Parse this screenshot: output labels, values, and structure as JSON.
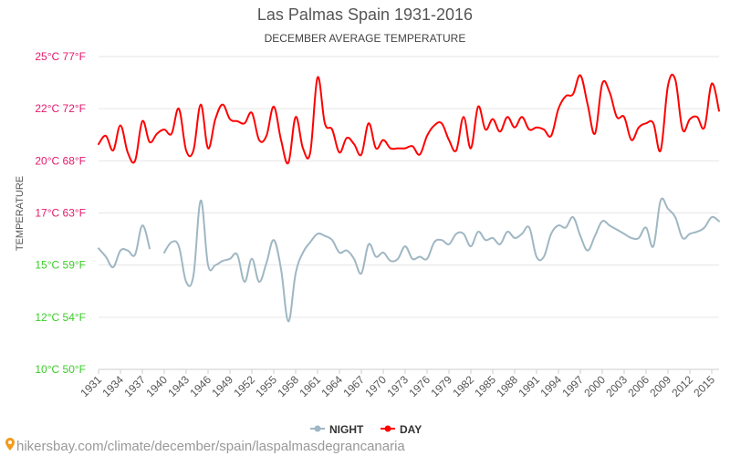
{
  "colors": {
    "night": "#9fb7c3",
    "day": "#ff0000",
    "y_label": "#e5196b",
    "y_label_cold": "#3bcc28",
    "grid": "#e6e6e6",
    "text": "#555555"
  },
  "source_text": "hikersbay.com/climate/december/spain/laspalmasdegrancanaria",
  "chart_data": {
    "type": "line",
    "title": "Las Palmas Spain 1931-2016",
    "subtitle": "DECEMBER AVERAGE TEMPERATURE",
    "ylabel": "TEMPERATURE",
    "xlabel": "",
    "ylim": [
      10,
      25
    ],
    "y_ticks": [
      {
        "value": 10,
        "label": "10°C 50°F",
        "cold": true
      },
      {
        "value": 12.5,
        "label": "12°C 54°F",
        "cold": true
      },
      {
        "value": 15,
        "label": "15°C 59°F",
        "cold": true
      },
      {
        "value": 17.5,
        "label": "17°C 63°F",
        "cold": false
      },
      {
        "value": 20,
        "label": "20°C 68°F",
        "cold": false
      },
      {
        "value": 22.5,
        "label": "22°C 72°F",
        "cold": false
      },
      {
        "value": 25,
        "label": "25°C 77°F",
        "cold": false
      }
    ],
    "x_range": [
      1931,
      2016
    ],
    "x_tick_labels": [
      "1931",
      "1934",
      "1937",
      "1940",
      "1943",
      "1946",
      "1949",
      "1952",
      "1955",
      "1958",
      "1961",
      "1964",
      "1967",
      "1970",
      "1973",
      "1976",
      "1979",
      "1982",
      "1985",
      "1988",
      "1991",
      "1994",
      "1997",
      "2000",
      "2003",
      "2006",
      "2009",
      "2012",
      "2015"
    ],
    "legend": {
      "position": "bottom-center",
      "night_label": "NIGHT",
      "day_label": "DAY"
    },
    "grid": true,
    "series": [
      {
        "name": "DAY",
        "key": "day",
        "x": [
          1931,
          1932,
          1933,
          1934,
          1935,
          1936,
          1937,
          1938,
          1939,
          1940,
          1941,
          1942,
          1943,
          1944,
          1945,
          1946,
          1947,
          1948,
          1949,
          1950,
          1951,
          1952,
          1953,
          1954,
          1955,
          1956,
          1957,
          1958,
          1959,
          1960,
          1961,
          1962,
          1963,
          1964,
          1965,
          1966,
          1967,
          1968,
          1969,
          1970,
          1971,
          1972,
          1973,
          1974,
          1975,
          1976,
          1977,
          1978,
          1979,
          1980,
          1981,
          1982,
          1983,
          1984,
          1985,
          1986,
          1987,
          1988,
          1989,
          1990,
          1991,
          1992,
          1993,
          1994,
          1995,
          1996,
          1997,
          1998,
          1999,
          2000,
          2001,
          2002,
          2003,
          2004,
          2005,
          2006,
          2007,
          2008,
          2009,
          2010,
          2011,
          2012,
          2013,
          2014,
          2015,
          2016
        ],
        "values": [
          20.8,
          21.2,
          20.5,
          21.7,
          20.4,
          20.0,
          21.9,
          20.9,
          21.3,
          21.5,
          21.3,
          22.5,
          20.5,
          20.5,
          22.7,
          20.6,
          22.0,
          22.7,
          22.0,
          21.9,
          21.8,
          22.3,
          21.0,
          21.2,
          22.6,
          21.0,
          19.9,
          22.1,
          20.6,
          20.4,
          24.0,
          21.8,
          21.5,
          20.4,
          21.1,
          20.8,
          20.3,
          21.8,
          20.6,
          21.0,
          20.6,
          20.6,
          20.6,
          20.7,
          20.3,
          21.2,
          21.7,
          21.8,
          21.0,
          20.5,
          22.1,
          20.6,
          22.6,
          21.5,
          22.0,
          21.4,
          22.1,
          21.6,
          22.1,
          21.5,
          21.6,
          21.5,
          21.2,
          22.5,
          23.1,
          23.2,
          24.1,
          22.7,
          21.3,
          23.7,
          23.3,
          22.1,
          22.1,
          21.0,
          21.6,
          21.8,
          21.8,
          20.5,
          23.6,
          23.9,
          21.5,
          22.0,
          22.1,
          21.6,
          23.7,
          22.4
        ]
      },
      {
        "name": "NIGHT",
        "key": "night",
        "x": [
          1931,
          1932,
          1933,
          1934,
          1935,
          1936,
          1937,
          1938,
          null,
          1940,
          1941,
          1942,
          1943,
          1944,
          1945,
          1946,
          1947,
          1948,
          1949,
          1950,
          1951,
          1952,
          1953,
          1954,
          1955,
          1956,
          1957,
          1958,
          1959,
          1960,
          1961,
          1962,
          1963,
          1964,
          1965,
          1966,
          1967,
          1968,
          1969,
          1970,
          1971,
          1972,
          1973,
          1974,
          1975,
          1976,
          1977,
          1978,
          1979,
          1980,
          1981,
          1982,
          1983,
          1984,
          1985,
          1986,
          1987,
          1988,
          1989,
          1990,
          1991,
          1992,
          1993,
          1994,
          1995,
          1996,
          1997,
          1998,
          1999,
          2000,
          2001,
          2002,
          2003,
          2004,
          2005,
          2006,
          2007,
          2008,
          2009,
          2010,
          2011,
          2012,
          2013,
          2014,
          2015,
          2016
        ],
        "values": [
          15.8,
          15.4,
          14.9,
          15.7,
          15.7,
          15.5,
          16.9,
          15.8,
          null,
          15.6,
          16.1,
          15.9,
          14.2,
          14.5,
          18.1,
          15.0,
          15.0,
          15.2,
          15.3,
          15.5,
          14.2,
          15.3,
          14.2,
          15.1,
          16.2,
          14.8,
          12.3,
          14.6,
          15.6,
          16.1,
          16.5,
          16.4,
          16.2,
          15.6,
          15.7,
          15.3,
          14.6,
          16.0,
          15.4,
          15.6,
          15.2,
          15.3,
          15.9,
          15.3,
          15.4,
          15.3,
          16.1,
          16.2,
          16.0,
          16.5,
          16.5,
          15.9,
          16.6,
          16.2,
          16.3,
          16.0,
          16.6,
          16.3,
          16.5,
          16.8,
          15.4,
          15.4,
          16.5,
          16.9,
          16.8,
          17.3,
          16.4,
          15.7,
          16.4,
          17.1,
          16.9,
          16.7,
          16.5,
          16.3,
          16.3,
          16.8,
          15.9,
          18.1,
          17.7,
          17.3,
          16.3,
          16.5,
          16.6,
          16.8,
          17.3,
          17.1
        ]
      }
    ]
  }
}
